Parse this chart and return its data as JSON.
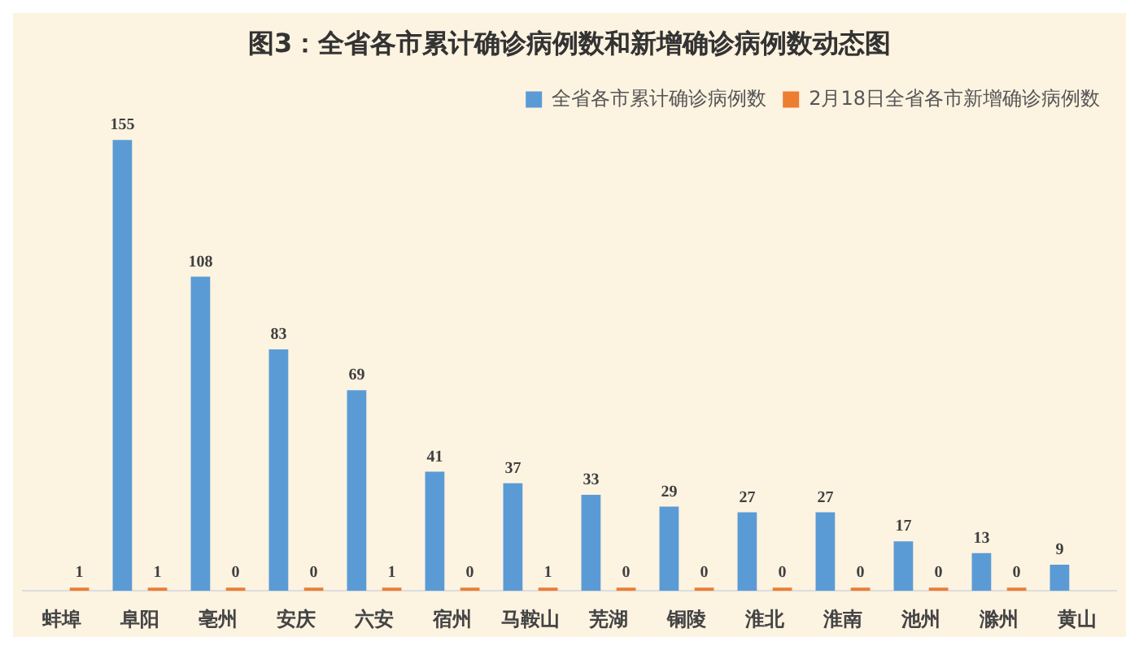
{
  "chart_data": {
    "type": "bar",
    "title": "图3：全省各市累计确诊病例数和新增确诊病例数动态图",
    "categories": [
      "蚌埠",
      "阜阳",
      "亳州",
      "安庆",
      "六安",
      "宿州",
      "马鞍山",
      "芜湖",
      "铜陵",
      "淮北",
      "淮南",
      "池州",
      "滁州",
      "黄山"
    ],
    "series": [
      {
        "name": "全省各市累计确诊病例数",
        "color": "#5b9bd5",
        "values": [
          null,
          155,
          108,
          83,
          69,
          41,
          37,
          33,
          29,
          27,
          27,
          17,
          13,
          9
        ]
      },
      {
        "name": "2月18日全省各市新增确诊病例数",
        "color": "#ed7d31",
        "values": [
          1,
          1,
          0,
          0,
          1,
          0,
          1,
          0,
          0,
          0,
          0,
          0,
          0,
          null
        ]
      }
    ],
    "data_labels": true,
    "legend": "top right",
    "grid": false
  }
}
